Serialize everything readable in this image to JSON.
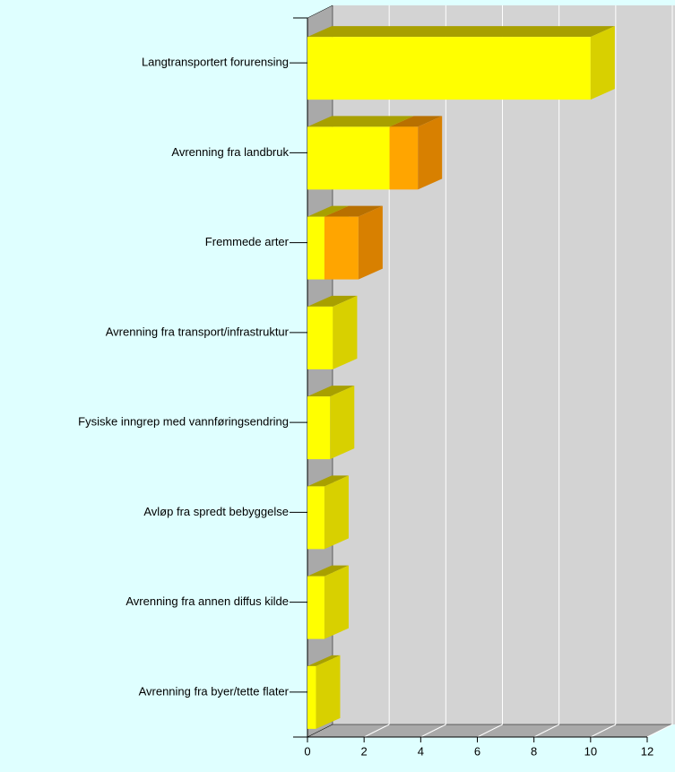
{
  "chart_data": {
    "type": "bar",
    "orientation": "horizontal",
    "stacked": true,
    "categories": [
      "Langtransportert forurensing",
      "Avrenning fra landbruk",
      "Fremmede arter",
      "Avrenning fra transport/infrastruktur",
      "Fysiske inngrep med vannføringsendring",
      "Avløp fra spredt bebyggelse",
      "Avrenning fra annen diffus kilde",
      "Avrenning fra byer/tette flater"
    ],
    "series": [
      {
        "color": "#ffff00",
        "values": [
          10,
          2.9,
          0.6,
          0.9,
          0.8,
          0.6,
          0.6,
          0.3
        ]
      },
      {
        "color": "#ffa500",
        "values": [
          0,
          1.0,
          1.2,
          0,
          0,
          0,
          0,
          0
        ]
      }
    ],
    "xlim": [
      0,
      12
    ],
    "xticks": [
      0,
      2,
      4,
      6,
      8,
      10,
      12
    ],
    "grid": true
  }
}
